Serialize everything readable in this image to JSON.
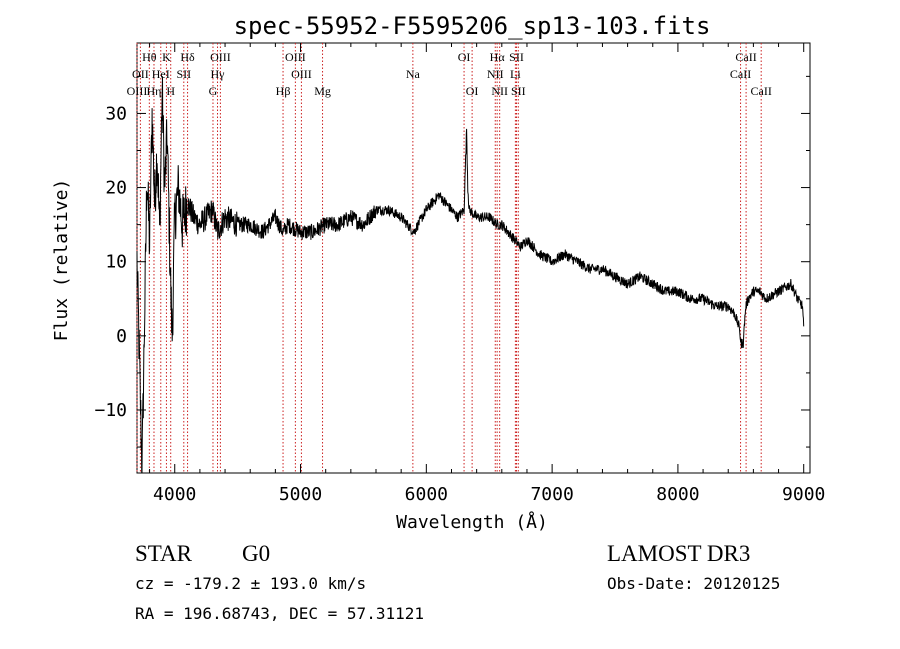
{
  "chart_data": {
    "type": "line",
    "title": "spec-55952-F5595206_sp13-103.fits",
    "xlabel": "Wavelength (Å)",
    "ylabel": "Flux (relative)",
    "xlim": [
      3700,
      9050
    ],
    "ylim": [
      -18.5,
      39.5
    ],
    "xticks": [
      4000,
      5000,
      6000,
      7000,
      8000,
      9000
    ],
    "yticks": [
      -10,
      0,
      10,
      20,
      30
    ],
    "series": [
      {
        "name": "flux",
        "x": [
          3700,
          3740,
          3760,
          3780,
          3800,
          3820,
          3840,
          3860,
          3880,
          3900,
          3920,
          3940,
          3960,
          3970,
          3980,
          4000,
          4030,
          4060,
          4100,
          4150,
          4200,
          4250,
          4300,
          4340,
          4400,
          4500,
          4600,
          4700,
          4800,
          4861,
          4900,
          5000,
          5100,
          5200,
          5300,
          5400,
          5500,
          5600,
          5700,
          5800,
          5900,
          6000,
          6100,
          6200,
          6250,
          6300,
          6320,
          6330,
          6340,
          6400,
          6450,
          6500,
          6563,
          6600,
          6650,
          6700,
          6750,
          6800,
          6900,
          7000,
          7100,
          7200,
          7300,
          7400,
          7500,
          7600,
          7700,
          7800,
          7900,
          8000,
          8100,
          8200,
          8300,
          8400,
          8450,
          8490,
          8500,
          8520,
          8530,
          8540,
          8560,
          8600,
          8650,
          8700,
          8800,
          8900,
          8950,
          8990,
          9000
        ],
        "y": [
          10,
          -18,
          2,
          22,
          12,
          30,
          18,
          25,
          14,
          33,
          20,
          27,
          12,
          5,
          0,
          16,
          20,
          15,
          18,
          16,
          15,
          16,
          17,
          14,
          16,
          15,
          15,
          14,
          16,
          14,
          15,
          14,
          14,
          15,
          15,
          16,
          15,
          17,
          17,
          16,
          14,
          17,
          19,
          17,
          16,
          17,
          28,
          20,
          17,
          16,
          16,
          16,
          15,
          15,
          14,
          13,
          12,
          13,
          11,
          10,
          11,
          10,
          9,
          9,
          8,
          7,
          8,
          7,
          6,
          6,
          5,
          5,
          4,
          4,
          3,
          1,
          -1,
          -1,
          2,
          4,
          5,
          6,
          6,
          5,
          6,
          7,
          5,
          4,
          1
        ]
      }
    ],
    "lines": [
      {
        "label": "Hθ",
        "x": 3798,
        "row": 0
      },
      {
        "label": "K",
        "x": 3934,
        "row": 0
      },
      {
        "label": "Hδ",
        "x": 4102,
        "row": 0
      },
      {
        "label": "OIII",
        "x": 4363,
        "row": 0
      },
      {
        "label": "OIII",
        "x": 4959,
        "row": 0
      },
      {
        "label": "OI",
        "x": 6300,
        "row": 0
      },
      {
        "label": "Hα",
        "x": 6563,
        "row": 0
      },
      {
        "label": "SII",
        "x": 6717,
        "row": 0
      },
      {
        "label": "CaII",
        "x": 8542,
        "row": 0
      },
      {
        "label": "OII",
        "x": 3727,
        "row": 1
      },
      {
        "label": "HeI",
        "x": 3889,
        "row": 1
      },
      {
        "label": "SII",
        "x": 4072,
        "row": 1
      },
      {
        "label": "Hγ",
        "x": 4340,
        "row": 1
      },
      {
        "label": "OIII",
        "x": 5007,
        "row": 1
      },
      {
        "label": "Na",
        "x": 5893,
        "row": 1
      },
      {
        "label": "NII",
        "x": 6548,
        "row": 1
      },
      {
        "label": "Li",
        "x": 6708,
        "row": 1
      },
      {
        "label": "CaII",
        "x": 8498,
        "row": 1
      },
      {
        "label": "OIII",
        "x": 3700,
        "row": 2
      },
      {
        "label": "Hη",
        "x": 3835,
        "row": 2
      },
      {
        "label": "H",
        "x": 3968,
        "row": 2
      },
      {
        "label": "G",
        "x": 4304,
        "row": 2
      },
      {
        "label": "Hβ",
        "x": 4861,
        "row": 2
      },
      {
        "label": "Mg",
        "x": 5175,
        "row": 2
      },
      {
        "label": "OI",
        "x": 6364,
        "row": 2
      },
      {
        "label": "NII",
        "x": 6583,
        "row": 2
      },
      {
        "label": "SII",
        "x": 6731,
        "row": 2
      },
      {
        "label": "CaII",
        "x": 8662,
        "row": 2
      }
    ]
  },
  "info": {
    "class": "STAR",
    "subclass": "G0",
    "survey": "LAMOST DR3",
    "cz": "cz = -179.2 ± 193.0 km/s",
    "obs_date": "Obs-Date: 20120125",
    "coords": "RA = 196.68743, DEC =  57.31121"
  },
  "colors": {
    "line_marker": "#cc2222",
    "spectrum": "#000000"
  }
}
